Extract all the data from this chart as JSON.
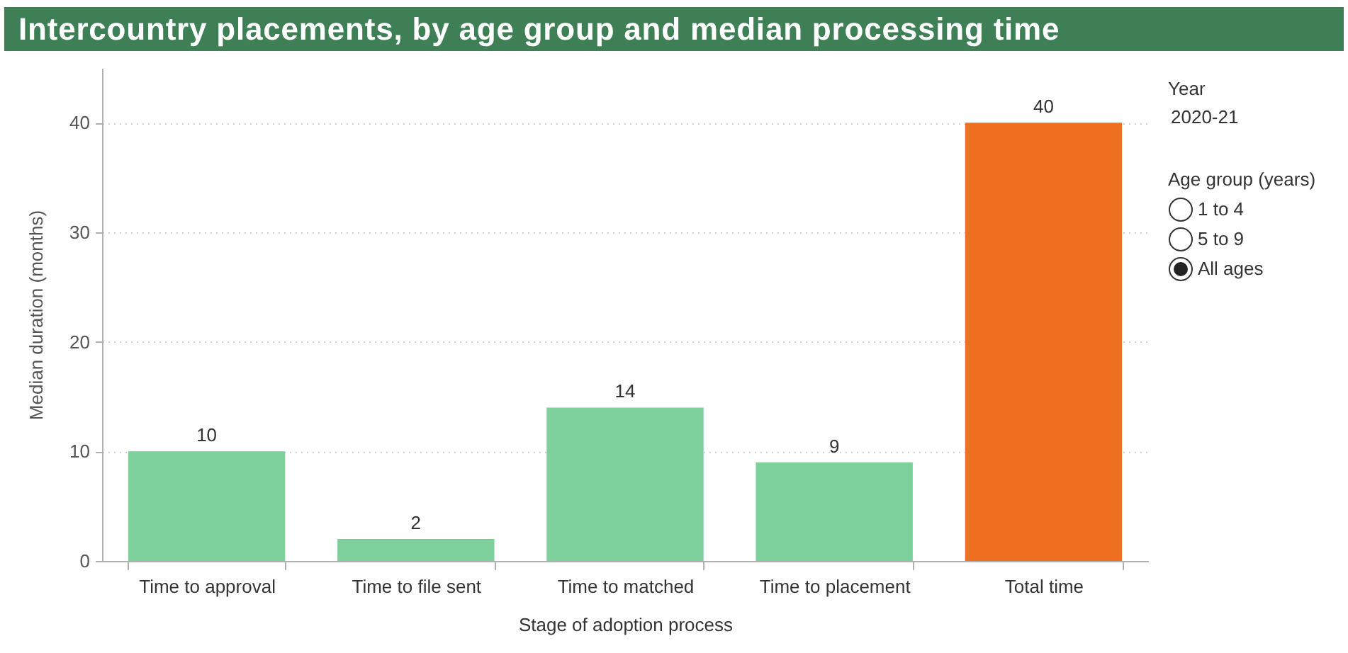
{
  "chart_data": {
    "type": "bar",
    "title": "Intercountry placements, by age group and median processing time",
    "xlabel": "Stage of adoption process",
    "ylabel": "Median duration (months)",
    "categories": [
      "Time to approval",
      "Time to file sent",
      "Time to matched",
      "Time to placement",
      "Total time"
    ],
    "values": [
      10,
      2,
      14,
      9,
      40
    ],
    "colors": [
      "#7dcf9b",
      "#7dcf9b",
      "#7dcf9b",
      "#7dcf9b",
      "#f07022"
    ],
    "ylim": [
      0,
      45
    ],
    "yticks": [
      0,
      10,
      20,
      30,
      40
    ],
    "grid": "y",
    "data_labels": true,
    "annotations": [
      "Year",
      "2020-21",
      "Age group (years)",
      "1 to 4",
      "5 to 9",
      "All ages"
    ]
  }
}
